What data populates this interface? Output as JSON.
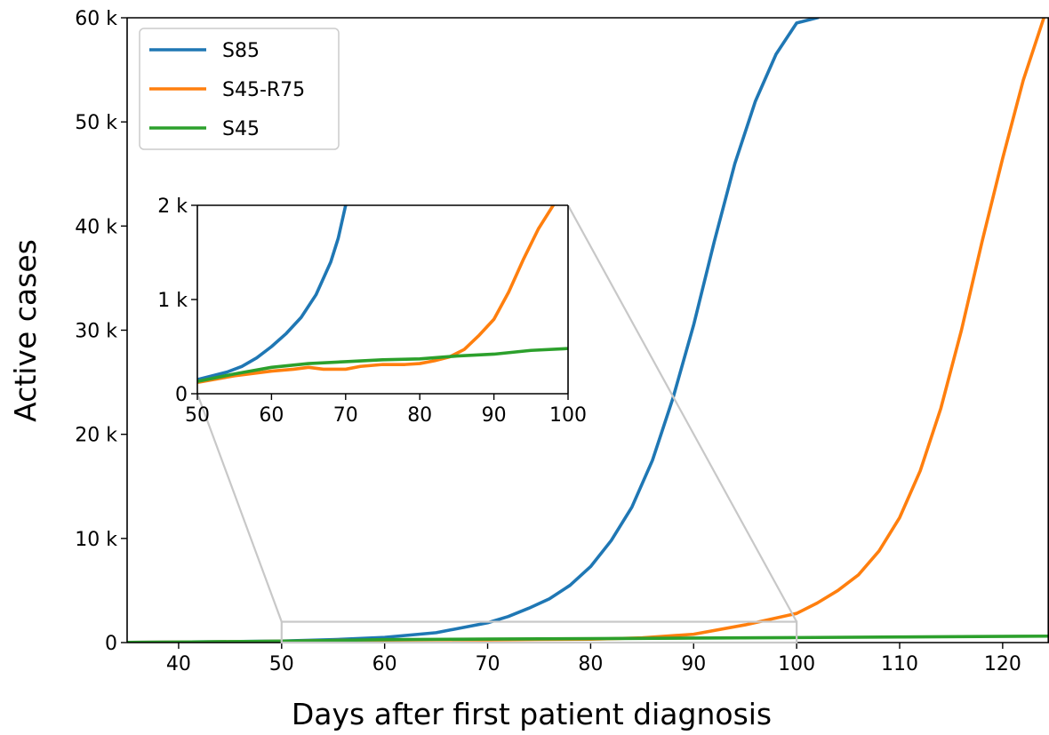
{
  "chart_data": [
    {
      "type": "line",
      "role": "main",
      "xlabel": "Days after first patient diagnosis",
      "ylabel": "Active cases",
      "xlim": [
        35,
        124.5
      ],
      "ylim": [
        0,
        60000
      ],
      "xticks": [
        40,
        50,
        60,
        70,
        80,
        90,
        100,
        110,
        120
      ],
      "xtick_labels": [
        "40",
        "50",
        "60",
        "70",
        "80",
        "90",
        "100",
        "110",
        "120"
      ],
      "yticks": [
        0,
        10000,
        20000,
        30000,
        40000,
        50000,
        60000
      ],
      "ytick_labels": [
        "0",
        "10 k",
        "20 k",
        "30 k",
        "40 k",
        "50 k",
        "60 k"
      ],
      "grid": false,
      "legend": "top-left",
      "zoom_region": {
        "x": [
          50,
          100
        ],
        "y": [
          0,
          2000
        ]
      },
      "series": [
        {
          "name": "S85",
          "color": "#1f77b4",
          "x": [
            35,
            40,
            45,
            50,
            55,
            60,
            65,
            70,
            72,
            74,
            76,
            78,
            80,
            82,
            84,
            86,
            88,
            90,
            92,
            94,
            96,
            98,
            100,
            102
          ],
          "y": [
            20,
            45,
            90,
            150,
            280,
            500,
            950,
            1900,
            2500,
            3300,
            4200,
            5500,
            7300,
            9800,
            13000,
            17500,
            23500,
            30500,
            38500,
            46000,
            52000,
            56500,
            59500,
            60000
          ]
        },
        {
          "name": "S45-R75",
          "color": "#ff7f0e",
          "x": [
            35,
            40,
            45,
            50,
            55,
            60,
            65,
            70,
            75,
            80,
            85,
            90,
            95,
            100,
            102,
            104,
            106,
            108,
            110,
            112,
            114,
            116,
            118,
            120,
            122,
            124
          ],
          "y": [
            20,
            40,
            80,
            120,
            200,
            240,
            270,
            260,
            300,
            320,
            450,
            800,
            1700,
            2800,
            3800,
            5000,
            6500,
            8800,
            12000,
            16500,
            22500,
            30000,
            38500,
            46500,
            54000,
            60000
          ]
        },
        {
          "name": "S45",
          "color": "#2ca02c",
          "x": [
            35,
            40,
            45,
            50,
            60,
            70,
            80,
            90,
            100,
            110,
            124.5
          ],
          "y": [
            20,
            50,
            90,
            130,
            280,
            340,
            380,
            430,
            480,
            540,
            620
          ]
        }
      ]
    },
    {
      "type": "line",
      "role": "inset",
      "xlim": [
        50,
        100
      ],
      "ylim": [
        0,
        2000
      ],
      "xticks": [
        50,
        60,
        70,
        80,
        90,
        100
      ],
      "xtick_labels": [
        "50",
        "60",
        "70",
        "80",
        "90",
        "100"
      ],
      "yticks": [
        0,
        1000,
        2000
      ],
      "ytick_labels": [
        "0",
        "1 k",
        "2 k"
      ],
      "grid": false,
      "series": [
        {
          "name": "S85",
          "color": "#1f77b4",
          "x": [
            50,
            52,
            54,
            56,
            58,
            60,
            62,
            64,
            66,
            68,
            69,
            70
          ],
          "y": [
            150,
            190,
            230,
            290,
            380,
            500,
            640,
            810,
            1050,
            1400,
            1650,
            2000
          ]
        },
        {
          "name": "S45-R75",
          "color": "#ff7f0e",
          "x": [
            50,
            55,
            60,
            63,
            65,
            67,
            70,
            72,
            75,
            78,
            80,
            82,
            84,
            86,
            88,
            90,
            92,
            94,
            96,
            98
          ],
          "y": [
            120,
            190,
            240,
            260,
            280,
            260,
            260,
            290,
            310,
            310,
            320,
            350,
            390,
            470,
            620,
            790,
            1080,
            1430,
            1750,
            2000
          ]
        },
        {
          "name": "S45",
          "color": "#2ca02c",
          "x": [
            50,
            55,
            60,
            65,
            70,
            75,
            80,
            85,
            90,
            95,
            100
          ],
          "y": [
            130,
            210,
            280,
            320,
            340,
            360,
            370,
            400,
            420,
            460,
            480
          ]
        }
      ]
    }
  ]
}
